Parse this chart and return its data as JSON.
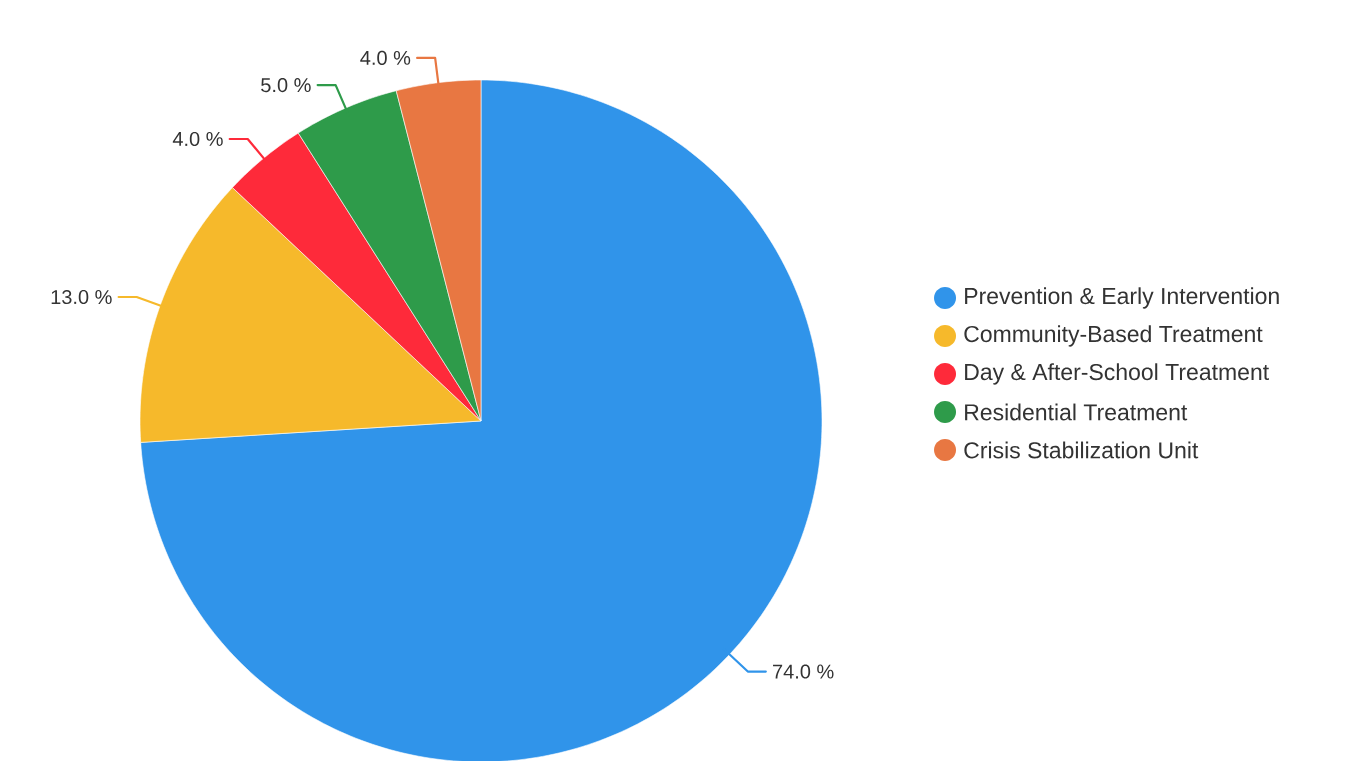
{
  "chart_data": {
    "type": "pie",
    "categories": [
      "Prevention & Early Intervention",
      "Community-Based Treatment",
      "Day & After-School Treatment",
      "Residential Treatment",
      "Crisis Stabilization Unit"
    ],
    "values": [
      74,
      13,
      4,
      5,
      4
    ],
    "value_labels": [
      "74.0 %",
      "13.0 %",
      "4.0 %",
      "5.0 %",
      "4.0 %"
    ],
    "colors": [
      "#3094ea",
      "#f6b92b",
      "#fe2a3a",
      "#2e9b4a",
      "#e87742"
    ],
    "legend": "right"
  }
}
